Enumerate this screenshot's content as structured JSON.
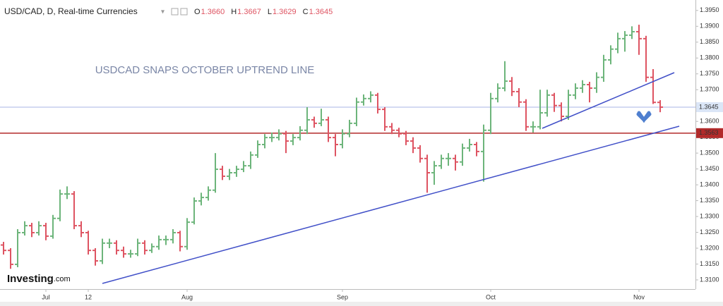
{
  "chart_data": {
    "type": "ohlc",
    "title": "USD/CAD, D, Real-time Currencies",
    "ohlc_legend": [
      {
        "key": "O",
        "value": 1.366,
        "label": "1.3660"
      },
      {
        "key": "H",
        "value": 1.3667,
        "label": "1.3667"
      },
      {
        "key": "L",
        "value": 1.3629,
        "label": "1.3629"
      },
      {
        "key": "C",
        "value": 1.3645,
        "label": "1.3645"
      }
    ],
    "annotation": "USDCAD SNAPS OCTOBER UPTREND LINE",
    "logo": {
      "name": "Investing",
      "suffix": ".com"
    },
    "up_color": "#6db57b",
    "down_color": "#de5462",
    "categories": [
      null,
      null,
      null,
      null,
      null,
      null,
      "Jul",
      null,
      null,
      null,
      null,
      null,
      "12",
      null,
      null,
      null,
      null,
      null,
      null,
      null,
      null,
      null,
      null,
      null,
      null,
      null,
      "Aug",
      null,
      null,
      null,
      null,
      null,
      null,
      null,
      null,
      null,
      null,
      null,
      null,
      null,
      null,
      null,
      null,
      null,
      null,
      null,
      null,
      null,
      "Sep",
      null,
      null,
      null,
      null,
      null,
      null,
      null,
      null,
      null,
      null,
      null,
      null,
      null,
      null,
      null,
      null,
      null,
      null,
      null,
      null,
      "Oct",
      null,
      null,
      null,
      null,
      null,
      null,
      null,
      null,
      null,
      null,
      null,
      null,
      null,
      null,
      null,
      null,
      null,
      null,
      null,
      null,
      "Nov",
      null,
      null,
      null
    ],
    "open": [
      1.321,
      1.3193,
      1.3149,
      1.3249,
      1.3271,
      1.3249,
      1.3271,
      1.3238,
      1.3294,
      1.3371,
      1.3371,
      1.3271,
      1.3249,
      1.3193,
      1.316,
      1.3216,
      1.3216,
      1.3193,
      1.3182,
      1.3182,
      1.3216,
      1.3193,
      1.3205,
      1.3227,
      1.3227,
      1.3249,
      1.3205,
      1.3282,
      1.3349,
      1.336,
      1.3383,
      1.3449,
      1.3427,
      1.3438,
      1.3449,
      1.346,
      1.3494,
      1.3527,
      1.3549,
      1.3549,
      1.3561,
      1.3538,
      1.3549,
      1.3572,
      1.3605,
      1.3594,
      1.3605,
      1.3549,
      1.3527,
      1.3561,
      1.3594,
      1.3661,
      1.3672,
      1.3683,
      1.3638,
      1.3583,
      1.3572,
      1.3561,
      1.3538,
      1.3516,
      1.3483,
      1.3438,
      1.346,
      1.3483,
      1.3483,
      1.3472,
      1.3516,
      1.3527,
      1.3505,
      1.3572,
      1.3672,
      1.3705,
      1.3727,
      1.3694,
      1.3661,
      1.3583,
      1.3583,
      1.3627,
      1.3683,
      1.365,
      1.3616,
      1.3683,
      1.3705,
      1.3716,
      1.3705,
      1.3739,
      1.3794,
      1.3828,
      1.3861,
      1.3872,
      1.3883,
      1.3861,
      1.3739,
      1.366
    ],
    "high": [
      1.322,
      1.32,
      1.326,
      1.3285,
      1.328,
      1.3285,
      1.328,
      1.3305,
      1.3385,
      1.3395,
      1.338,
      1.3285,
      1.3255,
      1.32,
      1.323,
      1.323,
      1.3225,
      1.3205,
      1.3195,
      1.323,
      1.3225,
      1.3215,
      1.324,
      1.324,
      1.326,
      1.3255,
      1.3295,
      1.336,
      1.3375,
      1.3395,
      1.35,
      1.346,
      1.345,
      1.346,
      1.3475,
      1.3505,
      1.354,
      1.356,
      1.3565,
      1.3575,
      1.357,
      1.356,
      1.3585,
      1.3645,
      1.3615,
      1.364,
      1.3615,
      1.356,
      1.3575,
      1.3605,
      1.3675,
      1.3685,
      1.3695,
      1.369,
      1.3645,
      1.3595,
      1.358,
      1.357,
      1.355,
      1.3525,
      1.3495,
      1.3475,
      1.3495,
      1.35,
      1.3495,
      1.353,
      1.3545,
      1.3535,
      1.359,
      1.369,
      1.372,
      1.379,
      1.374,
      1.3705,
      1.367,
      1.36,
      1.37,
      1.37,
      1.369,
      1.366,
      1.37,
      1.372,
      1.373,
      1.3725,
      1.3755,
      1.381,
      1.384,
      1.388,
      1.3885,
      1.39,
      1.3905,
      1.387,
      1.3765,
      1.3667
    ],
    "low": [
      1.318,
      1.3135,
      1.314,
      1.324,
      1.3235,
      1.324,
      1.3225,
      1.323,
      1.3285,
      1.3355,
      1.326,
      1.3235,
      1.318,
      1.3145,
      1.315,
      1.32,
      1.318,
      1.317,
      1.317,
      1.3175,
      1.318,
      1.3185,
      1.3195,
      1.321,
      1.3215,
      1.319,
      1.3195,
      1.3275,
      1.3335,
      1.335,
      1.3375,
      1.3415,
      1.3415,
      1.3425,
      1.344,
      1.345,
      1.3485,
      1.3515,
      1.3535,
      1.354,
      1.35,
      1.3525,
      1.354,
      1.356,
      1.358,
      1.3585,
      1.3535,
      1.349,
      1.3515,
      1.355,
      1.3585,
      1.365,
      1.366,
      1.3625,
      1.357,
      1.356,
      1.355,
      1.3525,
      1.35,
      1.347,
      1.3375,
      1.34,
      1.345,
      1.346,
      1.3445,
      1.346,
      1.3505,
      1.349,
      1.341,
      1.356,
      1.366,
      1.3695,
      1.368,
      1.3645,
      1.357,
      1.3565,
      1.3575,
      1.3615,
      1.363,
      1.36,
      1.3605,
      1.367,
      1.369,
      1.366,
      1.369,
      1.3725,
      1.378,
      1.3815,
      1.382,
      1.386,
      1.381,
      1.3725,
      1.3655,
      1.3629
    ],
    "close": [
      1.3193,
      1.3149,
      1.3249,
      1.3271,
      1.3249,
      1.3271,
      1.3238,
      1.3294,
      1.3371,
      1.3371,
      1.3271,
      1.3249,
      1.3193,
      1.316,
      1.3216,
      1.3216,
      1.3193,
      1.3182,
      1.3182,
      1.3216,
      1.3193,
      1.3205,
      1.3227,
      1.3227,
      1.3249,
      1.3205,
      1.3282,
      1.3349,
      1.336,
      1.3383,
      1.3449,
      1.3427,
      1.3438,
      1.3449,
      1.346,
      1.3494,
      1.3527,
      1.3549,
      1.3549,
      1.3561,
      1.3538,
      1.3549,
      1.3572,
      1.3605,
      1.3594,
      1.3605,
      1.3549,
      1.3527,
      1.3561,
      1.3594,
      1.3661,
      1.3672,
      1.3683,
      1.3638,
      1.3583,
      1.3572,
      1.3561,
      1.3538,
      1.3516,
      1.3483,
      1.3438,
      1.346,
      1.3483,
      1.3483,
      1.3472,
      1.3516,
      1.3527,
      1.3505,
      1.3572,
      1.3672,
      1.3705,
      1.3727,
      1.3694,
      1.3661,
      1.3583,
      1.3583,
      1.3627,
      1.3683,
      1.365,
      1.3616,
      1.3683,
      1.3705,
      1.3716,
      1.3705,
      1.3739,
      1.3794,
      1.3828,
      1.3861,
      1.3872,
      1.3883,
      1.3861,
      1.3739,
      1.366,
      1.3645
    ],
    "ylim": [
      1.3071,
      1.3983
    ],
    "yticks": [
      {
        "value": 1.395,
        "label": "1.3950"
      },
      {
        "value": 1.39,
        "label": "1.3900"
      },
      {
        "value": 1.385,
        "label": "1.3850"
      },
      {
        "value": 1.38,
        "label": "1.3800"
      },
      {
        "value": 1.375,
        "label": "1.3750"
      },
      {
        "value": 1.37,
        "label": "1.3700"
      },
      {
        "value": 1.365,
        "label": "1.3650"
      },
      {
        "value": 1.36,
        "label": "1.3600"
      },
      {
        "value": 1.355,
        "label": "1.3550"
      },
      {
        "value": 1.35,
        "label": "1.3500"
      },
      {
        "value": 1.345,
        "label": "1.3450"
      },
      {
        "value": 1.34,
        "label": "1.3400"
      },
      {
        "value": 1.335,
        "label": "1.3350"
      },
      {
        "value": 1.33,
        "label": "1.3300"
      },
      {
        "value": 1.325,
        "label": "1.3250"
      },
      {
        "value": 1.32,
        "label": "1.3200"
      },
      {
        "value": 1.315,
        "label": "1.3150"
      },
      {
        "value": 1.31,
        "label": "1.3100"
      }
    ],
    "price_lines": [
      {
        "value": 1.3645,
        "label": "1.3645",
        "color": "#a9b6e6",
        "label_bg": "#dbe6f7",
        "label_color": "#1a3d8f"
      },
      {
        "value": 1.3563,
        "label": "1.3563",
        "color": "#b22a2a",
        "label_bg": "#b22a2a",
        "label_color": "#ffffff"
      }
    ]
  }
}
